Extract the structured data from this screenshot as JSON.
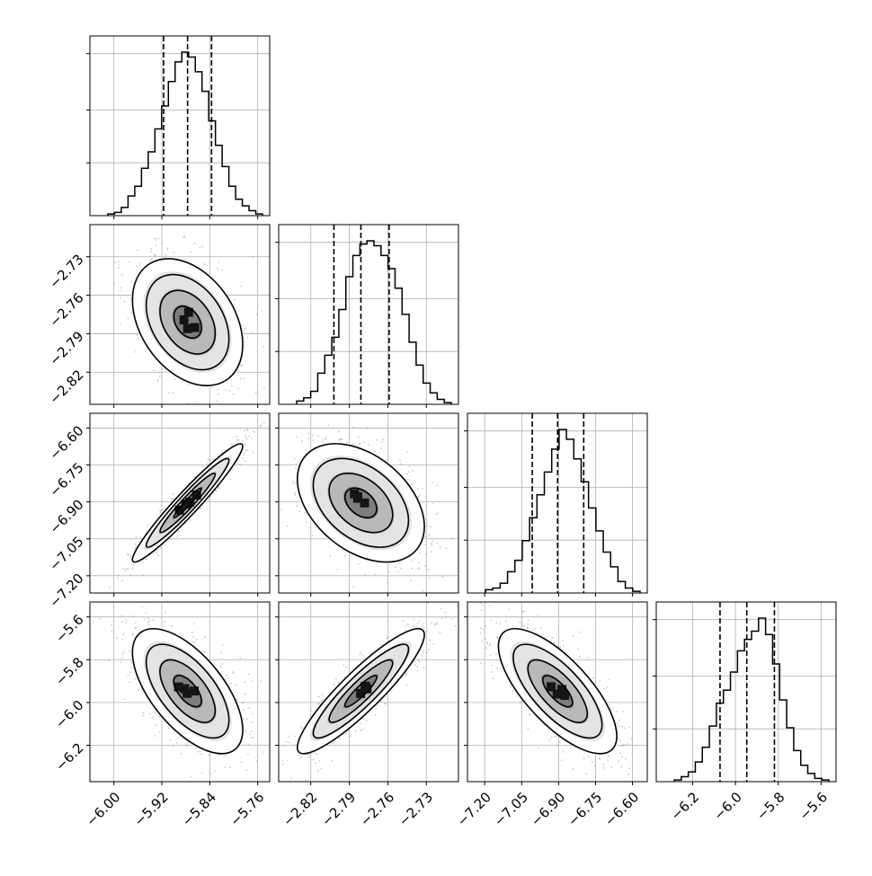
{
  "chart_data": {
    "type": "corner",
    "description_of_layout": "4x4 lower-triangular corner plot: diagonal = 1D histograms with dashed quantile lines, off-diagonal = 2D density scatter with contours",
    "parameters": [
      {
        "range": [
          -6.04,
          -5.74
        ],
        "ticks": [
          -6.0,
          -5.92,
          -5.84,
          -5.76
        ],
        "tick_labels": [
          "−6.00",
          "−5.92",
          "−5.84",
          "−5.76"
        ],
        "quantiles": [
          -5.917,
          -5.877,
          -5.837
        ],
        "hist": [
          0.01,
          0.02,
          0.05,
          0.12,
          0.18,
          0.29,
          0.39,
          0.53,
          0.67,
          0.82,
          0.94,
          1.0,
          0.97,
          0.88,
          0.76,
          0.58,
          0.43,
          0.3,
          0.18,
          0.1,
          0.06,
          0.03,
          0.01
        ]
      },
      {
        "range": [
          -2.845,
          -2.705
        ],
        "ticks": [
          -2.82,
          -2.79,
          -2.76,
          -2.73
        ],
        "tick_labels": [
          "−2.82",
          "−2.79",
          "−2.76",
          "−2.73"
        ],
        "quantiles": [
          -2.802,
          -2.781,
          -2.759
        ],
        "hist": [
          0.02,
          0.04,
          0.08,
          0.19,
          0.3,
          0.41,
          0.58,
          0.78,
          0.91,
          0.98,
          1.0,
          0.97,
          0.91,
          0.83,
          0.71,
          0.55,
          0.38,
          0.24,
          0.13,
          0.07,
          0.03,
          0.01
        ]
      },
      {
        "range": [
          -7.27,
          -6.54
        ],
        "ticks": [
          -7.2,
          -7.05,
          -6.9,
          -6.75,
          -6.6
        ],
        "tick_labels": [
          "−7.20",
          "−7.05",
          "−6.90",
          "−6.75",
          "−6.60"
        ],
        "quantiles": [
          -7.007,
          -6.904,
          -6.798
        ],
        "hist": [
          0.02,
          0.03,
          0.06,
          0.13,
          0.2,
          0.32,
          0.46,
          0.6,
          0.74,
          0.88,
          1.0,
          0.94,
          0.82,
          0.68,
          0.52,
          0.38,
          0.25,
          0.16,
          0.07,
          0.03,
          0.01
        ]
      },
      {
        "range": [
          -6.37,
          -5.53
        ],
        "ticks": [
          -6.2,
          -6.0,
          -5.8,
          -5.6
        ],
        "tick_labels": [
          "−6.2",
          "−6.0",
          "−5.8",
          "−5.6"
        ],
        "quantiles": [
          -6.072,
          -5.947,
          -5.818
        ],
        "hist": [
          0.01,
          0.03,
          0.06,
          0.12,
          0.21,
          0.34,
          0.48,
          0.56,
          0.67,
          0.8,
          0.87,
          0.92,
          1.0,
          0.9,
          0.72,
          0.5,
          0.33,
          0.19,
          0.1,
          0.05,
          0.02,
          0.01
        ]
      }
    ],
    "correlations": {
      "1-0": -0.35,
      "2-0": 0.96,
      "2-1": -0.4,
      "3-0": -0.62,
      "3-1": 0.9,
      "3-2": -0.72
    },
    "contour_levels_sigma": [
      0.5,
      1.0,
      1.5,
      2.0
    ],
    "grid": true
  }
}
